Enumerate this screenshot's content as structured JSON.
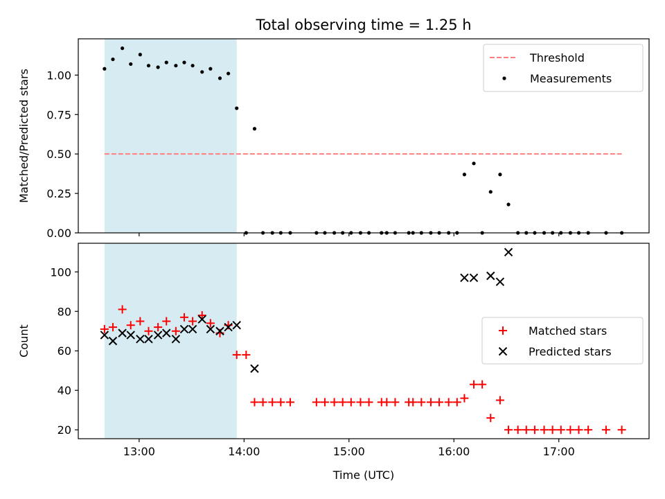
{
  "chart_data": [
    {
      "type": "scatter",
      "title": "Total observing time = 1.25 h",
      "xlabel": "",
      "ylabel": "Matched/Predicted stars",
      "x_unit": "hour (UTC)",
      "xlim": [
        12.42,
        17.86
      ],
      "ylim": [
        0.0,
        1.23
      ],
      "x_ticks": [
        13,
        14,
        15,
        16,
        17
      ],
      "y_ticks": [
        0.0,
        0.25,
        0.5,
        0.75,
        1.0
      ],
      "y_tick_labels": [
        "0.00",
        "0.25",
        "0.50",
        "0.75",
        "1.00"
      ],
      "shaded_interval": {
        "x": [
          12.67,
          13.93
        ],
        "color": "#add8e6"
      },
      "legend_position": "top-right",
      "series": [
        {
          "name": "Threshold",
          "kind": "dashed-line",
          "color": "#ff7f7f",
          "x": [
            12.67,
            17.6
          ],
          "y": [
            0.5,
            0.5
          ]
        },
        {
          "name": "Measurements",
          "kind": "dot",
          "color": "#000000",
          "x": [
            12.67,
            12.75,
            12.84,
            12.92,
            13.01,
            13.09,
            13.18,
            13.26,
            13.35,
            13.43,
            13.51,
            13.6,
            13.68,
            13.77,
            13.85,
            13.93,
            14.02,
            14.1,
            14.18,
            14.27,
            14.35,
            14.44,
            14.69,
            14.77,
            14.86,
            14.94,
            15.02,
            15.11,
            15.19,
            15.31,
            15.36,
            15.44,
            15.57,
            15.61,
            15.69,
            15.78,
            15.86,
            15.95,
            16.03,
            16.1,
            16.19,
            16.27,
            16.35,
            16.44,
            16.52,
            16.61,
            16.69,
            16.77,
            16.86,
            16.94,
            17.02,
            17.11,
            17.19,
            17.28,
            17.45,
            17.6
          ],
          "y": [
            1.04,
            1.1,
            1.17,
            1.07,
            1.13,
            1.06,
            1.05,
            1.08,
            1.06,
            1.08,
            1.06,
            1.02,
            1.04,
            0.98,
            1.01,
            0.79,
            0.0,
            0.66,
            0.0,
            0.0,
            0.0,
            0.0,
            0.0,
            0.0,
            0.0,
            0.0,
            0.0,
            0.0,
            0.0,
            0.0,
            0.0,
            0.0,
            0.0,
            0.0,
            0.0,
            0.0,
            0.0,
            0.0,
            0.0,
            0.37,
            0.44,
            0.0,
            0.26,
            0.37,
            0.18,
            0.0,
            0.0,
            0.0,
            0.0,
            0.0,
            0.0,
            0.0,
            0.0,
            0.0,
            0.0,
            0.0
          ]
        }
      ]
    },
    {
      "type": "scatter",
      "title": "",
      "xlabel": "Time (UTC)",
      "ylabel": "Count",
      "x_unit": "hour (UTC)",
      "xlim": [
        12.42,
        17.86
      ],
      "ylim": [
        15.5,
        114.5
      ],
      "x_ticks": [
        13,
        14,
        15,
        16,
        17
      ],
      "x_tick_labels": [
        "13:00",
        "14:00",
        "15:00",
        "16:00",
        "17:00"
      ],
      "y_ticks": [
        20,
        40,
        60,
        80,
        100
      ],
      "y_tick_labels": [
        "20",
        "40",
        "60",
        "80",
        "100"
      ],
      "shaded_interval": {
        "x": [
          12.67,
          13.93
        ],
        "color": "#add8e6"
      },
      "legend_position": "center-right",
      "series": [
        {
          "name": "Matched stars",
          "kind": "plus",
          "color": "#ff0000",
          "x": [
            12.67,
            12.75,
            12.84,
            12.92,
            13.01,
            13.09,
            13.18,
            13.26,
            13.35,
            13.43,
            13.51,
            13.6,
            13.68,
            13.77,
            13.85,
            13.93,
            14.02,
            14.1,
            14.18,
            14.27,
            14.35,
            14.44,
            14.69,
            14.77,
            14.86,
            14.94,
            15.02,
            15.11,
            15.19,
            15.31,
            15.36,
            15.44,
            15.57,
            15.61,
            15.69,
            15.78,
            15.86,
            15.95,
            16.03,
            16.1,
            16.19,
            16.27,
            16.35,
            16.44,
            16.52,
            16.61,
            16.69,
            16.77,
            16.86,
            16.94,
            17.02,
            17.11,
            17.19,
            17.28,
            17.45,
            17.6
          ],
          "y": [
            71,
            72,
            81,
            73,
            75,
            70,
            72,
            75,
            70,
            77,
            75,
            78,
            74,
            69,
            73,
            58,
            58,
            34,
            34,
            34,
            34,
            34,
            34,
            34,
            34,
            34,
            34,
            34,
            34,
            34,
            34,
            34,
            34,
            34,
            34,
            34,
            34,
            34,
            34,
            36,
            43,
            43,
            26,
            35,
            20,
            20,
            20,
            20,
            20,
            20,
            20,
            20,
            20,
            20,
            20,
            20
          ]
        },
        {
          "name": "Predicted stars",
          "kind": "x",
          "color": "#000000",
          "x": [
            12.67,
            12.75,
            12.84,
            12.92,
            13.01,
            13.09,
            13.18,
            13.26,
            13.35,
            13.43,
            13.51,
            13.6,
            13.68,
            13.77,
            13.85,
            13.93,
            14.1,
            16.1,
            16.19,
            16.35,
            16.44,
            16.52
          ],
          "y": [
            68,
            65,
            69,
            68,
            66,
            66,
            68,
            69,
            66,
            71,
            71,
            76,
            71,
            70,
            72,
            73,
            51,
            97,
            97,
            98,
            95,
            110
          ]
        }
      ]
    }
  ]
}
